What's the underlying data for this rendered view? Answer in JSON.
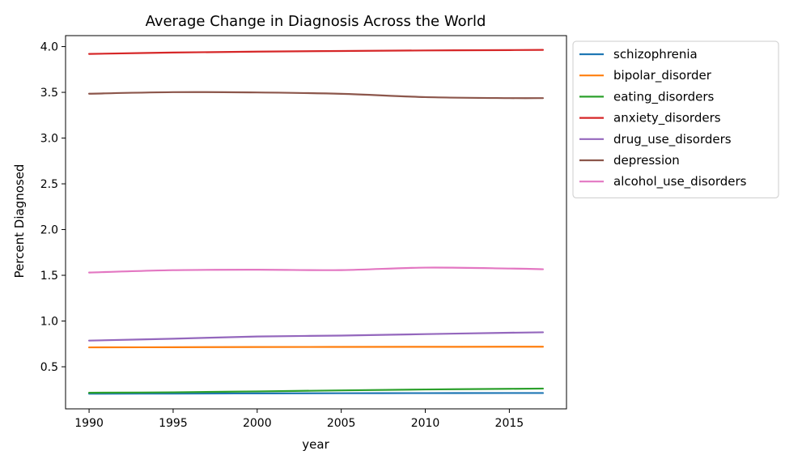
{
  "chart_data": {
    "type": "line",
    "title": "Average Change in Diagnosis Across the World",
    "xlabel": "year",
    "ylabel": "Percent Diagnosed",
    "xlim": [
      1988.6,
      2018.4
    ],
    "ylim": [
      0.04,
      4.12
    ],
    "xticks": [
      1990,
      1995,
      2000,
      2005,
      2010,
      2015
    ],
    "yticks": [
      0.5,
      1.0,
      1.5,
      2.0,
      2.5,
      3.0,
      3.5,
      4.0
    ],
    "ytick_labels": [
      "0.5",
      "1.0",
      "1.5",
      "2.0",
      "2.5",
      "3.0",
      "3.5",
      "4.0"
    ],
    "grid": false,
    "legend_position": "outside-top-right",
    "x": [
      1990,
      1995,
      2000,
      2005,
      2010,
      2015,
      2017
    ],
    "series": [
      {
        "name": "schizophrenia",
        "color": "#1f77b4",
        "values": [
          0.206,
          0.207,
          0.209,
          0.211,
          0.212,
          0.213,
          0.213
        ]
      },
      {
        "name": "bipolar_disorder",
        "color": "#ff7f0e",
        "values": [
          0.712,
          0.714,
          0.716,
          0.717,
          0.718,
          0.719,
          0.719
        ]
      },
      {
        "name": "eating_disorders",
        "color": "#2ca02c",
        "values": [
          0.216,
          0.221,
          0.231,
          0.242,
          0.252,
          0.259,
          0.262
        ]
      },
      {
        "name": "anxiety_disorders",
        "color": "#d62728",
        "values": [
          3.92,
          3.935,
          3.945,
          3.952,
          3.958,
          3.962,
          3.964
        ]
      },
      {
        "name": "drug_use_disorders",
        "color": "#9467bd",
        "values": [
          0.786,
          0.807,
          0.831,
          0.841,
          0.857,
          0.872,
          0.877
        ]
      },
      {
        "name": "depression",
        "color": "#8c564b",
        "values": [
          3.485,
          3.502,
          3.499,
          3.484,
          3.448,
          3.437,
          3.437
        ]
      },
      {
        "name": "alcohol_use_disorders",
        "color": "#e377c2",
        "values": [
          1.53,
          1.556,
          1.561,
          1.557,
          1.584,
          1.574,
          1.566
        ]
      }
    ]
  }
}
